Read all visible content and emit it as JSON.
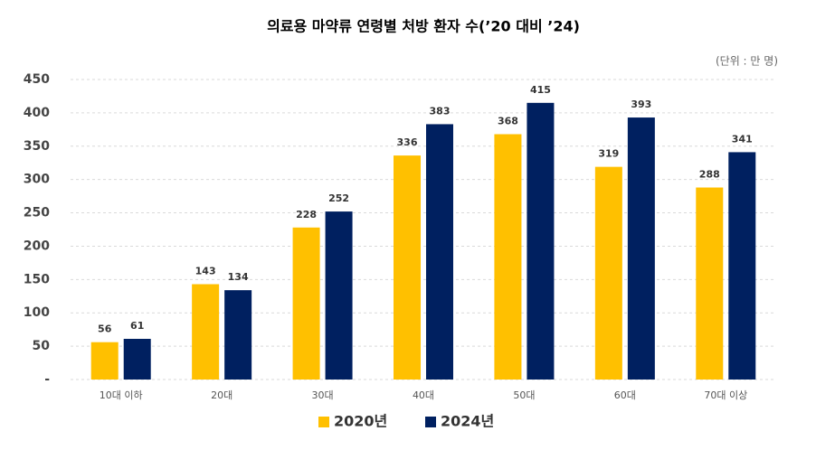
{
  "chart_data": {
    "type": "bar",
    "title": "의료용 마약류 연령별 처방 환자 수(’20 대비 ’24)",
    "unit": "(단위 : 만 명)",
    "categories": [
      "10대 이하",
      "20대",
      "30대",
      "40대",
      "50대",
      "60대",
      "70대 이상"
    ],
    "series": [
      {
        "name": "2020년",
        "color": "#FFC000",
        "values": [
          56,
          143,
          228,
          336,
          368,
          319,
          288
        ]
      },
      {
        "name": "2024년",
        "color": "#002060",
        "values": [
          61,
          134,
          252,
          383,
          415,
          393,
          341
        ]
      }
    ],
    "ylim": [
      0,
      450
    ],
    "yticks": [
      {
        "value": 0,
        "label": "-"
      },
      50,
      100,
      150,
      200,
      250,
      300,
      350,
      400,
      450
    ],
    "grid": true
  }
}
